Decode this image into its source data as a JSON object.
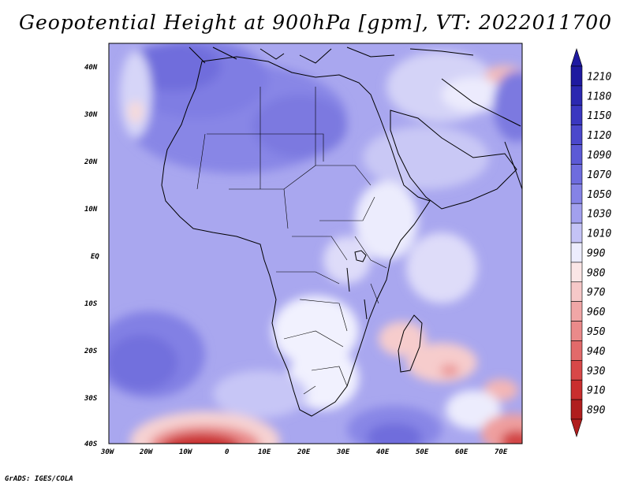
{
  "title": "Geopotential Height at 900hPa [gpm], VT: 2022011700",
  "credit": "GrADS: IGES/COLA",
  "map": {
    "variable": "Geopotential Height",
    "level": "900hPa",
    "units": "gpm",
    "valid_time": "2022011700",
    "lon_range": [
      -30,
      75
    ],
    "lat_range": [
      -40,
      45
    ],
    "lon_ticks": [
      "30W",
      "20W",
      "10W",
      "0",
      "10E",
      "20E",
      "30E",
      "40E",
      "50E",
      "60E",
      "70E"
    ],
    "lat_ticks": [
      "40N",
      "30N",
      "20N",
      "10N",
      "EQ",
      "10S",
      "20S",
      "30S",
      "40S"
    ]
  },
  "colorbar": {
    "levels": [
      "1210",
      "1180",
      "1150",
      "1120",
      "1090",
      "1070",
      "1050",
      "1030",
      "1010",
      "990",
      "980",
      "970",
      "960",
      "950",
      "940",
      "930",
      "910",
      "890"
    ],
    "colors": [
      "#1f1aa0",
      "#2b28b0",
      "#3a37c0",
      "#4b48cc",
      "#5c5ad6",
      "#6e6cde",
      "#8583e6",
      "#a2a0ee",
      "#c4c3f6",
      "#ececfd",
      "#fbe6e6",
      "#f6c8c8",
      "#f0a6a6",
      "#ea8a8a",
      "#e26a6a",
      "#d84848",
      "#c92e2e",
      "#b01e1e"
    ]
  }
}
